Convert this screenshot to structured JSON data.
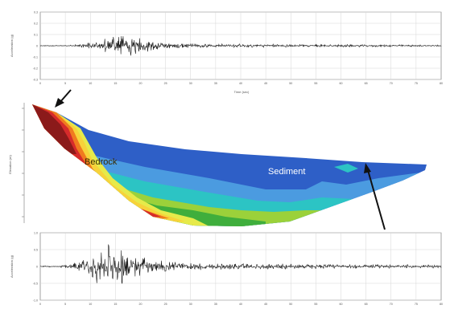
{
  "chart_data": [
    {
      "type": "line",
      "panel": "top-seismogram",
      "ylabel": "Acceleration (g)",
      "xlabel": "Time (sec)",
      "ylim": [
        -0.3,
        0.3
      ],
      "y_ticks": [
        "0.3",
        "0.2",
        "0.1",
        "0",
        "-0.1",
        "-0.2",
        "-0.3"
      ],
      "xlim": [
        0,
        80
      ],
      "x_ticks": [
        "0",
        "5",
        "10",
        "15",
        "20",
        "25",
        "30",
        "35",
        "40",
        "45",
        "50",
        "55",
        "60",
        "65",
        "70",
        "75",
        "80"
      ],
      "signal": {
        "onset": 6,
        "peak_time": 16,
        "peak_amplitude": 0.13,
        "coda_amplitude": 0.02,
        "line_color": "#1a1a1a"
      },
      "grid": true
    },
    {
      "type": "heatmap",
      "panel": "valley-cross-section",
      "ylabel": "Elevation (m)",
      "annotations": [
        "Bedrock",
        "Sediment"
      ],
      "colorscale": [
        "#8b1a1a",
        "#d62b2b",
        "#f07a1f",
        "#f7d23a",
        "#e6ea4a",
        "#9bd13a",
        "#3fae3c",
        "#2cc4c4",
        "#4b9be0",
        "#2e5fc7",
        "#1f3fa6"
      ],
      "grid": false
    },
    {
      "type": "line",
      "panel": "bottom-seismogram",
      "ylabel": "Acceleration (g)",
      "ylim": [
        -1.0,
        1.0
      ],
      "y_ticks": [
        "1.0",
        "0.5",
        "0",
        "-0.5",
        "-1.0"
      ],
      "xlim": [
        0,
        80
      ],
      "x_ticks": [
        "0",
        "5",
        "10",
        "15",
        "20",
        "25",
        "30",
        "35",
        "40",
        "45",
        "50",
        "55",
        "60",
        "65",
        "70",
        "75",
        "80"
      ],
      "signal": {
        "onset": 4,
        "peak_time": 14,
        "peak_amplitude": 0.78,
        "coda_amplitude": 0.12,
        "line_color": "#1a1a1a"
      },
      "grid": true
    }
  ],
  "labels": {
    "bedrock": "Bedrock",
    "sediment": "Sediment"
  },
  "colors": {
    "arrow": "#111111",
    "frame": "#666666"
  }
}
